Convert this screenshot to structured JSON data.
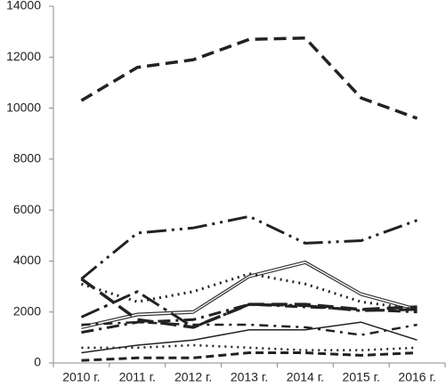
{
  "chart_data": {
    "type": "line",
    "categories": [
      "2010 г.",
      "2011 г.",
      "2012 г.",
      "2013 г.",
      "2014 г.",
      "2015 г.",
      "2016 г."
    ],
    "ylim": [
      0,
      14000
    ],
    "yticks": [
      0,
      2000,
      4000,
      6000,
      8000,
      10000,
      12000,
      14000
    ],
    "grid": false,
    "series": [
      {
        "color": "#222222",
        "dash": "14 7",
        "width": 3.5,
        "values": [
          10300,
          11600,
          11900,
          12700,
          12750,
          10400,
          9600
        ]
      },
      {
        "color": "#222222",
        "dash": "22 6 3 6 3 6",
        "width": 3,
        "values": [
          3300,
          5100,
          5300,
          5750,
          4700,
          4800,
          5600
        ]
      },
      {
        "color": "#333333",
        "dash": "none",
        "width": 1.2,
        "values": [
          1450,
          1950,
          2050,
          3450,
          4000,
          2750,
          2150
        ]
      },
      {
        "color": "#333333",
        "dash": "none",
        "width": 1.2,
        "values": [
          1350,
          1850,
          1950,
          3350,
          3900,
          2650,
          2050
        ]
      },
      {
        "color": "#222222",
        "dash": "2 5",
        "width": 3,
        "values": [
          3100,
          2400,
          2800,
          3500,
          3100,
          2400,
          2100
        ]
      },
      {
        "color": "#222222",
        "dash": "18 8",
        "width": 3.5,
        "values": [
          3300,
          1700,
          1400,
          2300,
          2300,
          2100,
          2200
        ]
      },
      {
        "color": "#222222",
        "dash": "22 6 4 6",
        "width": 3,
        "values": [
          1800,
          2800,
          1400,
          2300,
          2250,
          2050,
          2100
        ]
      },
      {
        "color": "#222222",
        "dash": "14 6 3 6",
        "width": 3,
        "values": [
          1200,
          1600,
          1700,
          2300,
          2200,
          2100,
          2000
        ]
      },
      {
        "color": "#222222",
        "dash": "10 6 3 6",
        "width": 2.5,
        "values": [
          1500,
          1600,
          1500,
          1500,
          1400,
          1100,
          1500
        ]
      },
      {
        "color": "#222222",
        "dash": "none",
        "width": 1.5,
        "values": [
          400,
          700,
          900,
          1300,
          1300,
          1600,
          900
        ]
      },
      {
        "color": "#222222",
        "dash": "2 5",
        "width": 2.5,
        "values": [
          600,
          600,
          700,
          600,
          500,
          500,
          600
        ]
      },
      {
        "color": "#222222",
        "dash": "9 5",
        "width": 3,
        "values": [
          100,
          200,
          200,
          400,
          400,
          300,
          400
        ]
      }
    ]
  }
}
